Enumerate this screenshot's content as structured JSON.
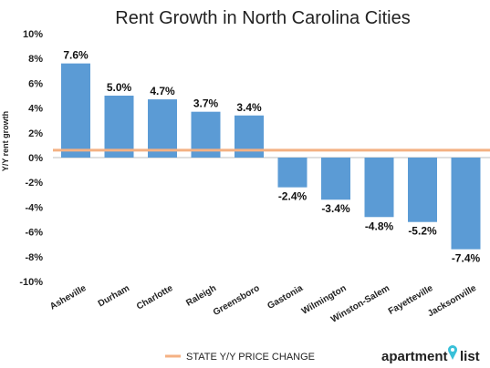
{
  "chart_data": {
    "type": "bar",
    "title": "Rent Growth in North Carolina Cities",
    "ylabel": "Y/Y rent growth",
    "xlabel": "",
    "ylim": [
      -10,
      10
    ],
    "yticks": [
      "10%",
      "8%",
      "6%",
      "4%",
      "2%",
      "0%",
      "-2%",
      "-4%",
      "-6%",
      "-8%",
      "-10%"
    ],
    "ytick_values": [
      10,
      8,
      6,
      4,
      2,
      0,
      -2,
      -4,
      -6,
      -8,
      -10
    ],
    "categories": [
      "Asheville",
      "Durham",
      "Charlotte",
      "Raleigh",
      "Greensboro",
      "Gastonia",
      "Wilmington",
      "Winston-Salem",
      "Fayetteville",
      "Jacksonville"
    ],
    "values": [
      7.6,
      5.0,
      4.7,
      3.7,
      3.4,
      -2.4,
      -3.4,
      -4.8,
      -5.2,
      -7.4
    ],
    "data_labels": [
      "7.6%",
      "5.0%",
      "4.7%",
      "3.7%",
      "3.4%",
      "-2.4%",
      "-3.4%",
      "-4.8%",
      "-5.2%",
      "-7.4%"
    ],
    "reference_line": {
      "name": "STATE Y/Y PRICE CHANGE",
      "value": 0.6,
      "color": "#f4b183"
    },
    "bar_color": "#5b9bd5",
    "grid": false,
    "legend_position": "bottom"
  },
  "brand": {
    "part1": "apartment",
    "part2": "list",
    "color": "#39c0d8"
  }
}
